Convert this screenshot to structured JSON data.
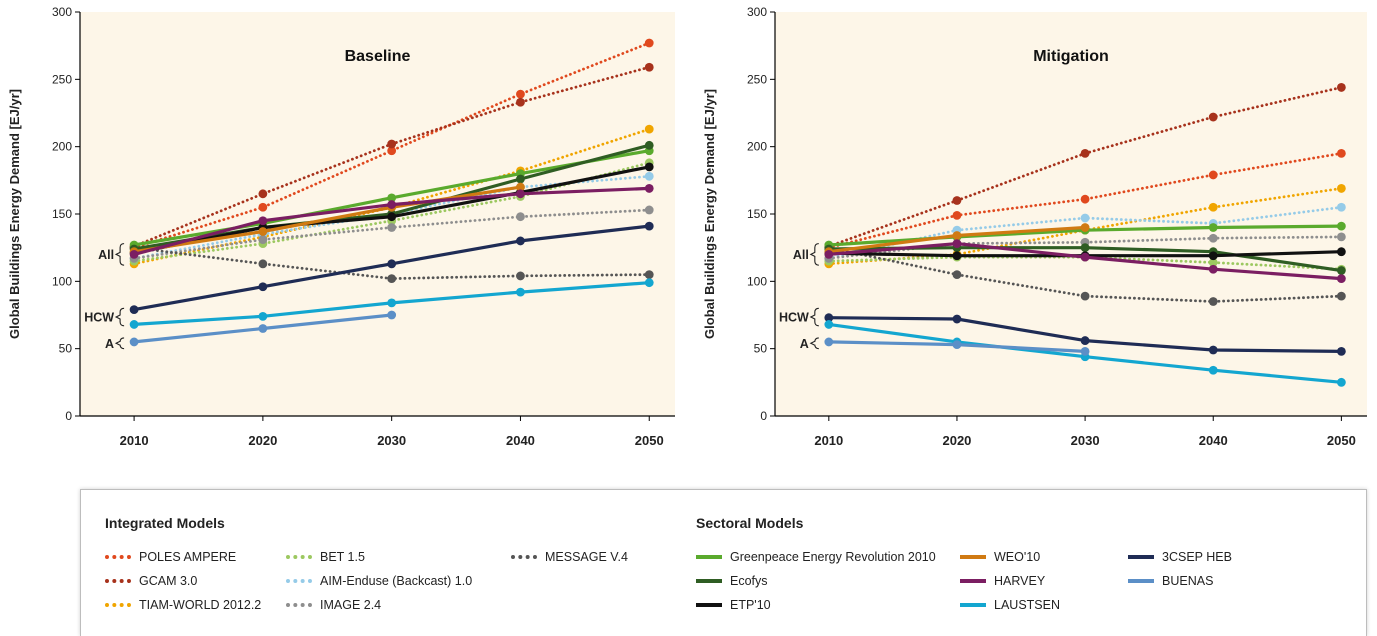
{
  "chart_data": [
    {
      "type": "line",
      "title": "Baseline",
      "ylabel": "Global Buildings Energy Demand [EJ/yr]",
      "ylim": [
        0,
        300
      ],
      "yticks": [
        0,
        50,
        100,
        150,
        200,
        250,
        300
      ],
      "xticks": [
        2010,
        2020,
        2030,
        2040,
        2050
      ],
      "brackets": [
        {
          "label": "All",
          "from": 112,
          "to": 128
        },
        {
          "label": "HCW",
          "from": 67,
          "to": 80
        },
        {
          "label": "A",
          "from": 50,
          "to": 58
        }
      ],
      "series": [
        {
          "name": "POLES AMPERE",
          "style": "dotted",
          "color": "#e0491e",
          "points": [
            [
              2010,
              125
            ],
            [
              2020,
              155
            ],
            [
              2030,
              197
            ],
            [
              2040,
              239
            ],
            [
              2050,
              277
            ]
          ]
        },
        {
          "name": "GCAM 3.0",
          "style": "dotted",
          "color": "#a7321c",
          "points": [
            [
              2010,
              126
            ],
            [
              2020,
              165
            ],
            [
              2030,
              202
            ],
            [
              2040,
              233
            ],
            [
              2050,
              259
            ]
          ]
        },
        {
          "name": "TIAM-WORLD 2012.2",
          "style": "dotted",
          "color": "#f0a500",
          "points": [
            [
              2010,
              113
            ],
            [
              2020,
              133
            ],
            [
              2030,
              155
            ],
            [
              2040,
              182
            ],
            [
              2050,
              213
            ]
          ]
        },
        {
          "name": "BET 1.5",
          "style": "dotted",
          "color": "#9cc860",
          "points": [
            [
              2010,
              115
            ],
            [
              2020,
              128
            ],
            [
              2030,
              145
            ],
            [
              2040,
              163
            ],
            [
              2050,
              188
            ]
          ]
        },
        {
          "name": "AIM-Enduse (Backcast) 1.0",
          "style": "dotted",
          "color": "#95cbe8",
          "points": [
            [
              2010,
              117
            ],
            [
              2020,
              135
            ],
            [
              2030,
              150
            ],
            [
              2040,
              170
            ],
            [
              2050,
              178
            ]
          ]
        },
        {
          "name": "IMAGE 2.4",
          "style": "dotted",
          "color": "#8e8e8e",
          "points": [
            [
              2010,
              117
            ],
            [
              2020,
              131
            ],
            [
              2030,
              140
            ],
            [
              2040,
              148
            ],
            [
              2050,
              153
            ]
          ]
        },
        {
          "name": "MESSAGE V.4",
          "style": "dotted",
          "color": "#555555",
          "points": [
            [
              2010,
              125
            ],
            [
              2020,
              113
            ],
            [
              2030,
              102
            ],
            [
              2040,
              104
            ],
            [
              2050,
              105
            ]
          ]
        },
        {
          "name": "Greenpeace Energy Revolution 2010",
          "style": "solid",
          "color": "#5aaa2d",
          "points": [
            [
              2010,
              127
            ],
            [
              2020,
              143
            ],
            [
              2030,
              162
            ],
            [
              2040,
              180
            ],
            [
              2050,
              197
            ]
          ]
        },
        {
          "name": "Ecofys",
          "style": "solid",
          "color": "#2f5d23",
          "points": [
            [
              2010,
              124
            ],
            [
              2020,
              140
            ],
            [
              2030,
              150
            ],
            [
              2040,
              176
            ],
            [
              2050,
              201
            ]
          ]
        },
        {
          "name": "ETP'10",
          "style": "solid",
          "color": "#111111",
          "points": [
            [
              2010,
              121
            ],
            [
              2020,
              140
            ],
            [
              2030,
              148
            ],
            [
              2040,
              166
            ],
            [
              2050,
              185
            ]
          ]
        },
        {
          "name": "WEO'10",
          "style": "solid",
          "color": "#d07a12",
          "points": [
            [
              2010,
              122
            ],
            [
              2020,
              137
            ],
            [
              2030,
              155
            ],
            [
              2040,
              170
            ]
          ]
        },
        {
          "name": "HARVEY",
          "style": "solid",
          "color": "#7b1e62",
          "points": [
            [
              2010,
              120
            ],
            [
              2020,
              145
            ],
            [
              2030,
              157
            ],
            [
              2040,
              165
            ],
            [
              2050,
              169
            ]
          ]
        },
        {
          "name": "3CSEP HEB",
          "style": "solid",
          "color": "#1f2c55",
          "points": [
            [
              2010,
              79
            ],
            [
              2020,
              96
            ],
            [
              2030,
              113
            ],
            [
              2040,
              130
            ],
            [
              2050,
              141
            ]
          ]
        },
        {
          "name": "LAUSTSEN",
          "style": "solid",
          "color": "#13a6d0",
          "points": [
            [
              2010,
              68
            ],
            [
              2020,
              74
            ],
            [
              2030,
              84
            ],
            [
              2040,
              92
            ],
            [
              2050,
              99
            ]
          ]
        },
        {
          "name": "BUENAS",
          "style": "solid",
          "color": "#5b8fc7",
          "points": [
            [
              2010,
              55
            ],
            [
              2020,
              65
            ],
            [
              2030,
              75
            ]
          ]
        }
      ]
    },
    {
      "type": "line",
      "title": "Mitigation",
      "ylabel": "Global Buildings Energy Demand [EJ/yr]",
      "ylim": [
        0,
        300
      ],
      "yticks": [
        0,
        50,
        100,
        150,
        200,
        250,
        300
      ],
      "xticks": [
        2010,
        2020,
        2030,
        2040,
        2050
      ],
      "brackets": [
        {
          "label": "All",
          "from": 112,
          "to": 128
        },
        {
          "label": "HCW",
          "from": 67,
          "to": 80
        },
        {
          "label": "A",
          "from": 50,
          "to": 58
        }
      ],
      "series": [
        {
          "name": "POLES AMPERE",
          "style": "dotted",
          "color": "#e0491e",
          "points": [
            [
              2010,
              125
            ],
            [
              2020,
              149
            ],
            [
              2030,
              161
            ],
            [
              2040,
              179
            ],
            [
              2050,
              195
            ]
          ]
        },
        {
          "name": "GCAM 3.0",
          "style": "dotted",
          "color": "#a7321c",
          "points": [
            [
              2010,
              126
            ],
            [
              2020,
              160
            ],
            [
              2030,
              195
            ],
            [
              2040,
              222
            ],
            [
              2050,
              244
            ]
          ]
        },
        {
          "name": "TIAM-WORLD 2012.2",
          "style": "dotted",
          "color": "#f0a500",
          "points": [
            [
              2010,
              113
            ],
            [
              2020,
              120
            ],
            [
              2030,
              138
            ],
            [
              2040,
              155
            ],
            [
              2050,
              169
            ]
          ]
        },
        {
          "name": "BET 1.5",
          "style": "dotted",
          "color": "#9cc860",
          "points": [
            [
              2010,
              115
            ],
            [
              2020,
              118
            ],
            [
              2030,
              118
            ],
            [
              2040,
              114
            ],
            [
              2050,
              109
            ]
          ]
        },
        {
          "name": "AIM-Enduse (Backcast) 1.0",
          "style": "dotted",
          "color": "#95cbe8",
          "points": [
            [
              2010,
              117
            ],
            [
              2020,
              138
            ],
            [
              2030,
              147
            ],
            [
              2040,
              143
            ],
            [
              2050,
              155
            ]
          ]
        },
        {
          "name": "IMAGE 2.4",
          "style": "dotted",
          "color": "#8e8e8e",
          "points": [
            [
              2010,
              117
            ],
            [
              2020,
              128
            ],
            [
              2030,
              129
            ],
            [
              2040,
              132
            ],
            [
              2050,
              133
            ]
          ]
        },
        {
          "name": "MESSAGE V.4",
          "style": "dotted",
          "color": "#555555",
          "points": [
            [
              2010,
              125
            ],
            [
              2020,
              105
            ],
            [
              2030,
              89
            ],
            [
              2040,
              85
            ],
            [
              2050,
              89
            ]
          ]
        },
        {
          "name": "Greenpeace Energy Revolution 2010",
          "style": "solid",
          "color": "#5aaa2d",
          "points": [
            [
              2010,
              127
            ],
            [
              2020,
              133
            ],
            [
              2030,
              138
            ],
            [
              2040,
              140
            ],
            [
              2050,
              141
            ]
          ]
        },
        {
          "name": "Ecofys",
          "style": "solid",
          "color": "#2f5d23",
          "points": [
            [
              2010,
              124
            ],
            [
              2020,
              125
            ],
            [
              2030,
              125
            ],
            [
              2040,
              122
            ],
            [
              2050,
              108
            ]
          ]
        },
        {
          "name": "ETP'10",
          "style": "solid",
          "color": "#111111",
          "points": [
            [
              2010,
              121
            ],
            [
              2020,
              119
            ],
            [
              2030,
              119
            ],
            [
              2040,
              119
            ],
            [
              2050,
              122
            ]
          ]
        },
        {
          "name": "WEO'10",
          "style": "solid",
          "color": "#d07a12",
          "points": [
            [
              2010,
              122
            ],
            [
              2020,
              134
            ],
            [
              2030,
              140
            ]
          ]
        },
        {
          "name": "HARVEY",
          "style": "solid",
          "color": "#7b1e62",
          "points": [
            [
              2010,
              120
            ],
            [
              2020,
              128
            ],
            [
              2030,
              118
            ],
            [
              2040,
              109
            ],
            [
              2050,
              102
            ]
          ]
        },
        {
          "name": "3CSEP HEB",
          "style": "solid",
          "color": "#1f2c55",
          "points": [
            [
              2010,
              73
            ],
            [
              2020,
              72
            ],
            [
              2030,
              56
            ],
            [
              2040,
              49
            ],
            [
              2050,
              48
            ]
          ]
        },
        {
          "name": "LAUSTSEN",
          "style": "solid",
          "color": "#13a6d0",
          "points": [
            [
              2010,
              68
            ],
            [
              2020,
              55
            ],
            [
              2030,
              44
            ],
            [
              2040,
              34
            ],
            [
              2050,
              25
            ]
          ]
        },
        {
          "name": "BUENAS",
          "style": "solid",
          "color": "#5b8fc7",
          "points": [
            [
              2010,
              55
            ],
            [
              2020,
              53
            ],
            [
              2030,
              48
            ]
          ]
        }
      ]
    }
  ],
  "legend": {
    "integrated_title": "Integrated Models",
    "sectoral_title": "Sectoral Models",
    "integrated": [
      {
        "label": "POLES AMPERE",
        "color": "#e0491e",
        "style": "dotted"
      },
      {
        "label": "GCAM 3.0",
        "color": "#a7321c",
        "style": "dotted"
      },
      {
        "label": "TIAM-WORLD 2012.2",
        "color": "#f0a500",
        "style": "dotted"
      },
      {
        "label": "BET 1.5",
        "color": "#9cc860",
        "style": "dotted"
      },
      {
        "label": "AIM-Enduse (Backcast) 1.0",
        "color": "#95cbe8",
        "style": "dotted"
      },
      {
        "label": "IMAGE 2.4",
        "color": "#8e8e8e",
        "style": "dotted"
      },
      {
        "label": "MESSAGE V.4",
        "color": "#555555",
        "style": "dotted"
      }
    ],
    "sectoral": [
      {
        "label": "Greenpeace Energy Revolution 2010",
        "color": "#5aaa2d",
        "style": "solid"
      },
      {
        "label": "Ecofys",
        "color": "#2f5d23",
        "style": "solid"
      },
      {
        "label": "ETP'10",
        "color": "#111111",
        "style": "solid"
      },
      {
        "label": "WEO'10",
        "color": "#d07a12",
        "style": "solid"
      },
      {
        "label": "HARVEY",
        "color": "#7b1e62",
        "style": "solid"
      },
      {
        "label": "LAUSTSEN",
        "color": "#13a6d0",
        "style": "solid"
      },
      {
        "label": "3CSEP HEB",
        "color": "#1f2c55",
        "style": "solid"
      },
      {
        "label": "BUENAS",
        "color": "#5b8fc7",
        "style": "solid"
      }
    ]
  }
}
